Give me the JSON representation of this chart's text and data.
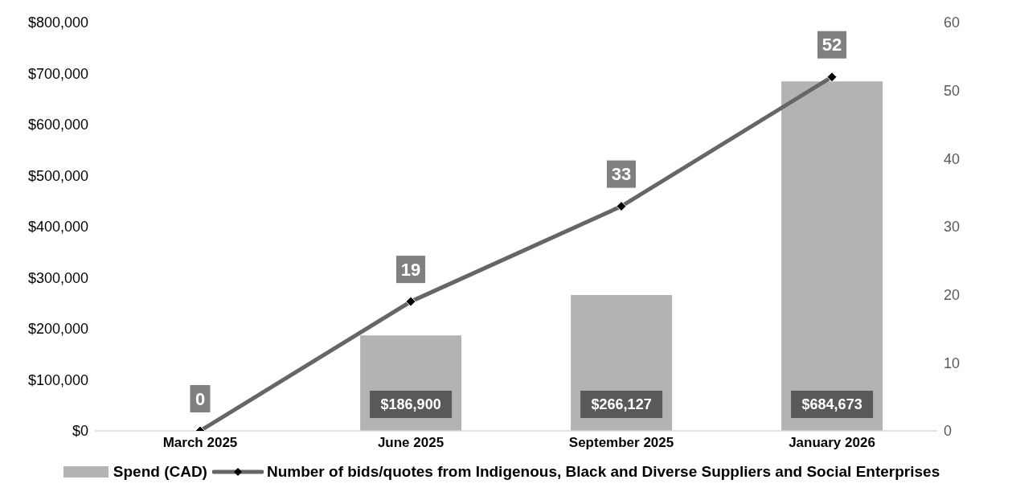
{
  "chart_data": {
    "type": "bar",
    "categories": [
      "March 2025",
      "June 2025",
      "September 2025",
      "January 2026"
    ],
    "series": [
      {
        "name": "Spend (CAD)",
        "color": "#b3b3b3",
        "values": [
          0,
          186900,
          266127,
          684673
        ],
        "value_labels": [
          null,
          "$186,900",
          "$266,127",
          "$684,673"
        ]
      },
      {
        "name": "Number of bids/quotes from Indigenous, Black and Diverse Suppliers and Social Enterprises",
        "type": "line",
        "axis": "y2",
        "color": "#666666",
        "values": [
          0,
          19,
          33,
          52
        ],
        "value_labels": [
          "0",
          "19",
          "33",
          "52"
        ]
      }
    ],
    "ylim": [
      0,
      800000
    ],
    "yticks": [
      {
        "value": 0,
        "label": "$0"
      },
      {
        "value": 100000,
        "label": "$100,000"
      },
      {
        "value": 200000,
        "label": "$200,000"
      },
      {
        "value": 300000,
        "label": "$300,000"
      },
      {
        "value": 400000,
        "label": "$400,000"
      },
      {
        "value": 500000,
        "label": "$500,000"
      },
      {
        "value": 600000,
        "label": "$600,000"
      },
      {
        "value": 700000,
        "label": "$700,000"
      },
      {
        "value": 800000,
        "label": "$800,000"
      }
    ],
    "y2lim": [
      0,
      60
    ],
    "y2ticks": [
      0,
      10,
      20,
      30,
      40,
      50,
      60
    ],
    "marker": "diamond",
    "grid": false,
    "legend": "bottom"
  }
}
